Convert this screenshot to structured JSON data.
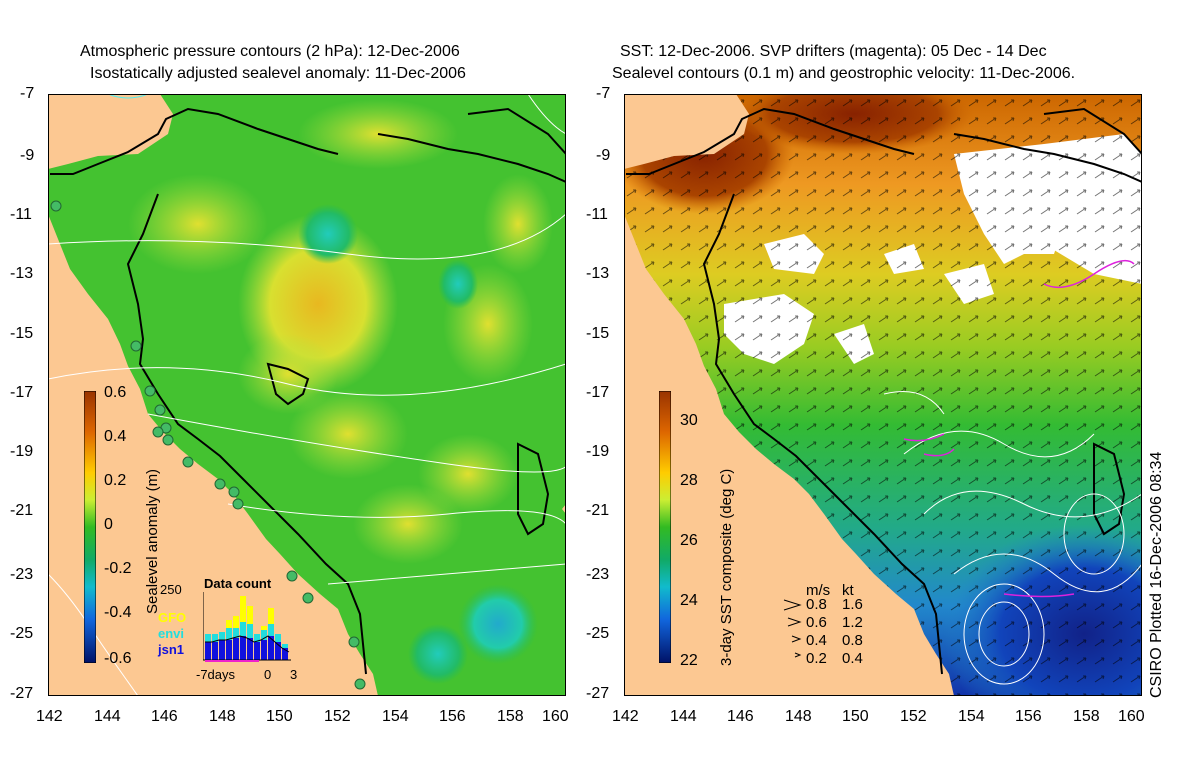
{
  "left_panel": {
    "title_line1": "Atmospheric pressure contours (2 hPa): 12-Dec-2006",
    "title_line2": "Isostatically adjusted sealevel anomaly: 11-Dec-2006",
    "colorbar_label": "Sealevel anomaly (m)",
    "colorbar_ticks": [
      "0.6",
      "0.4",
      "0.2",
      "0",
      "-0.2",
      "-0.4",
      "-0.6"
    ],
    "legend": {
      "gfo": "GFO",
      "envi": "envi",
      "jsn1": "jsn1",
      "gfo_color": "#ffff00",
      "envi_color": "#22dddd",
      "jsn1_color": "#1111dd"
    },
    "histogram": {
      "title": "Data count",
      "ytick": "250",
      "xlabel_days": "-7days",
      "xlabel_zero": "0",
      "xlabel_three": "3"
    }
  },
  "right_panel": {
    "title_line1": "SST: 12-Dec-2006. SVP drifters (magenta): 05 Dec - 14 Dec",
    "title_line2": "Sealevel contours (0.1 m) and geostrophic velocity: 11-Dec-2006.",
    "colorbar_label": "3-day SST composite (deg C)",
    "colorbar_ticks": [
      "30",
      "28",
      "26",
      "24",
      "22"
    ],
    "velocity_key": {
      "header_ms": "m/s",
      "header_kt": "kt",
      "rows": [
        {
          "ms": "0.8",
          "kt": "1.6"
        },
        {
          "ms": "0.6",
          "kt": "1.2"
        },
        {
          "ms": "0.4",
          "kt": "0.8"
        },
        {
          "ms": "0.2",
          "kt": "0.4"
        }
      ]
    }
  },
  "axes": {
    "y_ticks": [
      "-7",
      "-9",
      "-11",
      "-13",
      "-15",
      "-17",
      "-19",
      "-21",
      "-23",
      "-25",
      "-27"
    ],
    "x_ticks": [
      "142",
      "144",
      "146",
      "148",
      "150",
      "152",
      "154",
      "156",
      "158",
      "160"
    ]
  },
  "credit": "CSIRO Plotted 16-Dec-2006 08:34",
  "colors": {
    "land": "#fcc892",
    "sea_green": "#33bb22",
    "sst_warm": "#aa3300",
    "sst_cool": "#1133aa"
  }
}
